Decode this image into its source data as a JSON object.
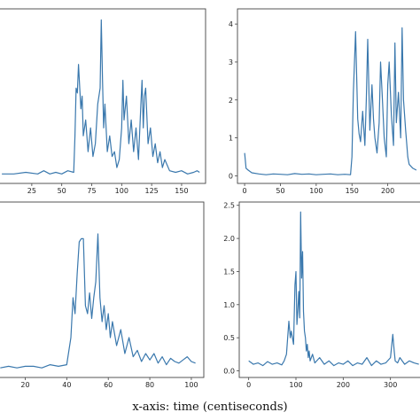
{
  "caption": "x-axis: time (centiseconds)",
  "colors": {
    "line": "#3a78ad",
    "frame": "#444444"
  },
  "chart_data": [
    {
      "type": "line",
      "xlim": [
        -3,
        170
      ],
      "ylim": [
        -0.05,
        1.05
      ],
      "xticks": [
        25,
        50,
        75,
        100,
        125,
        150
      ],
      "yticks": [],
      "x": [
        0,
        10,
        20,
        30,
        35,
        40,
        45,
        50,
        55,
        60,
        61,
        62,
        63,
        64,
        65,
        66,
        67,
        68,
        70,
        72,
        74,
        76,
        78,
        80,
        82,
        83,
        84,
        85,
        86,
        88,
        90,
        92,
        94,
        96,
        98,
        100,
        101,
        102,
        104,
        106,
        108,
        110,
        112,
        114,
        116,
        117,
        118,
        119,
        120,
        122,
        124,
        126,
        128,
        130,
        132,
        134,
        136,
        140,
        145,
        150,
        155,
        160,
        163,
        165
      ],
      "y": [
        0.01,
        0.01,
        0.02,
        0.01,
        0.03,
        0.01,
        0.02,
        0.01,
        0.03,
        0.02,
        0.25,
        0.55,
        0.52,
        0.7,
        0.55,
        0.42,
        0.5,
        0.25,
        0.35,
        0.15,
        0.3,
        0.12,
        0.2,
        0.45,
        0.55,
        0.98,
        0.6,
        0.3,
        0.45,
        0.15,
        0.25,
        0.12,
        0.15,
        0.05,
        0.1,
        0.3,
        0.6,
        0.35,
        0.5,
        0.2,
        0.35,
        0.15,
        0.3,
        0.1,
        0.45,
        0.6,
        0.3,
        0.5,
        0.55,
        0.2,
        0.3,
        0.12,
        0.2,
        0.08,
        0.15,
        0.05,
        0.1,
        0.03,
        0.02,
        0.03,
        0.01,
        0.02,
        0.03,
        0.02
      ]
    },
    {
      "type": "line",
      "xlim": [
        -10,
        250
      ],
      "ylim": [
        -0.2,
        4.4
      ],
      "xticks": [
        0,
        50,
        100,
        150,
        200
      ],
      "yticks": [
        0,
        1,
        2,
        3,
        4
      ],
      "x": [
        0,
        2,
        5,
        10,
        20,
        30,
        40,
        50,
        60,
        70,
        80,
        90,
        100,
        110,
        120,
        130,
        140,
        148,
        150,
        152,
        155,
        158,
        160,
        162,
        165,
        168,
        170,
        172,
        175,
        178,
        180,
        182,
        185,
        188,
        190,
        192,
        195,
        198,
        200,
        202,
        205,
        208,
        210,
        212,
        215,
        218,
        220,
        222,
        225,
        228,
        230,
        235,
        240
      ],
      "y": [
        0.6,
        0.2,
        0.15,
        0.08,
        0.05,
        0.03,
        0.05,
        0.04,
        0.03,
        0.06,
        0.04,
        0.05,
        0.03,
        0.04,
        0.05,
        0.03,
        0.04,
        0.03,
        0.5,
        2.2,
        3.8,
        1.5,
        1.1,
        0.9,
        1.7,
        0.8,
        2.0,
        3.6,
        1.2,
        2.4,
        1.5,
        1.0,
        0.6,
        1.4,
        3.0,
        2.2,
        1.0,
        0.5,
        2.4,
        3.0,
        1.6,
        0.8,
        3.5,
        1.4,
        2.2,
        1.0,
        3.9,
        2.0,
        1.2,
        0.5,
        0.3,
        0.2,
        0.15
      ]
    },
    {
      "type": "line",
      "xlim": [
        7,
        106
      ],
      "ylim": [
        -0.05,
        1.05
      ],
      "xticks": [
        20,
        40,
        60,
        80,
        100
      ],
      "yticks": [],
      "x": [
        8,
        12,
        16,
        20,
        24,
        28,
        32,
        36,
        40,
        42,
        43,
        44,
        45,
        46,
        47,
        48,
        49,
        50,
        51,
        52,
        53,
        54,
        55,
        56,
        57,
        58,
        59,
        60,
        61,
        62,
        64,
        66,
        68,
        70,
        72,
        74,
        76,
        78,
        80,
        82,
        84,
        86,
        88,
        90,
        92,
        94,
        96,
        98,
        100,
        102
      ],
      "y": [
        0.01,
        0.02,
        0.01,
        0.02,
        0.02,
        0.01,
        0.03,
        0.02,
        0.03,
        0.2,
        0.45,
        0.35,
        0.6,
        0.8,
        0.82,
        0.82,
        0.4,
        0.35,
        0.48,
        0.32,
        0.45,
        0.55,
        0.85,
        0.45,
        0.3,
        0.4,
        0.25,
        0.35,
        0.2,
        0.3,
        0.15,
        0.25,
        0.1,
        0.2,
        0.08,
        0.12,
        0.05,
        0.1,
        0.06,
        0.1,
        0.04,
        0.08,
        0.03,
        0.07,
        0.05,
        0.04,
        0.06,
        0.08,
        0.05,
        0.04
      ]
    },
    {
      "type": "line",
      "xlim": [
        -20,
        370
      ],
      "ylim": [
        -0.1,
        2.55
      ],
      "xticks": [
        0,
        100,
        200,
        300
      ],
      "yticks": [
        0.0,
        0.5,
        1.0,
        1.5,
        2.0,
        2.5
      ],
      "x": [
        0,
        10,
        20,
        30,
        40,
        50,
        60,
        70,
        75,
        80,
        85,
        88,
        90,
        95,
        98,
        100,
        102,
        104,
        106,
        108,
        110,
        112,
        114,
        116,
        118,
        120,
        122,
        124,
        126,
        128,
        130,
        135,
        140,
        150,
        160,
        170,
        180,
        190,
        200,
        210,
        220,
        230,
        240,
        250,
        260,
        270,
        280,
        290,
        300,
        305,
        308,
        310,
        315,
        320,
        330,
        340,
        350,
        360
      ],
      "y": [
        0.15,
        0.1,
        0.12,
        0.08,
        0.14,
        0.1,
        0.12,
        0.09,
        0.15,
        0.25,
        0.75,
        0.5,
        0.6,
        0.4,
        1.3,
        1.5,
        0.7,
        0.9,
        1.2,
        0.8,
        2.4,
        1.4,
        1.8,
        0.9,
        0.6,
        0.5,
        0.3,
        0.4,
        0.2,
        0.3,
        0.15,
        0.25,
        0.12,
        0.2,
        0.1,
        0.15,
        0.08,
        0.12,
        0.1,
        0.15,
        0.08,
        0.12,
        0.1,
        0.2,
        0.08,
        0.15,
        0.1,
        0.12,
        0.2,
        0.55,
        0.3,
        0.15,
        0.12,
        0.2,
        0.1,
        0.15,
        0.12,
        0.1
      ]
    }
  ]
}
